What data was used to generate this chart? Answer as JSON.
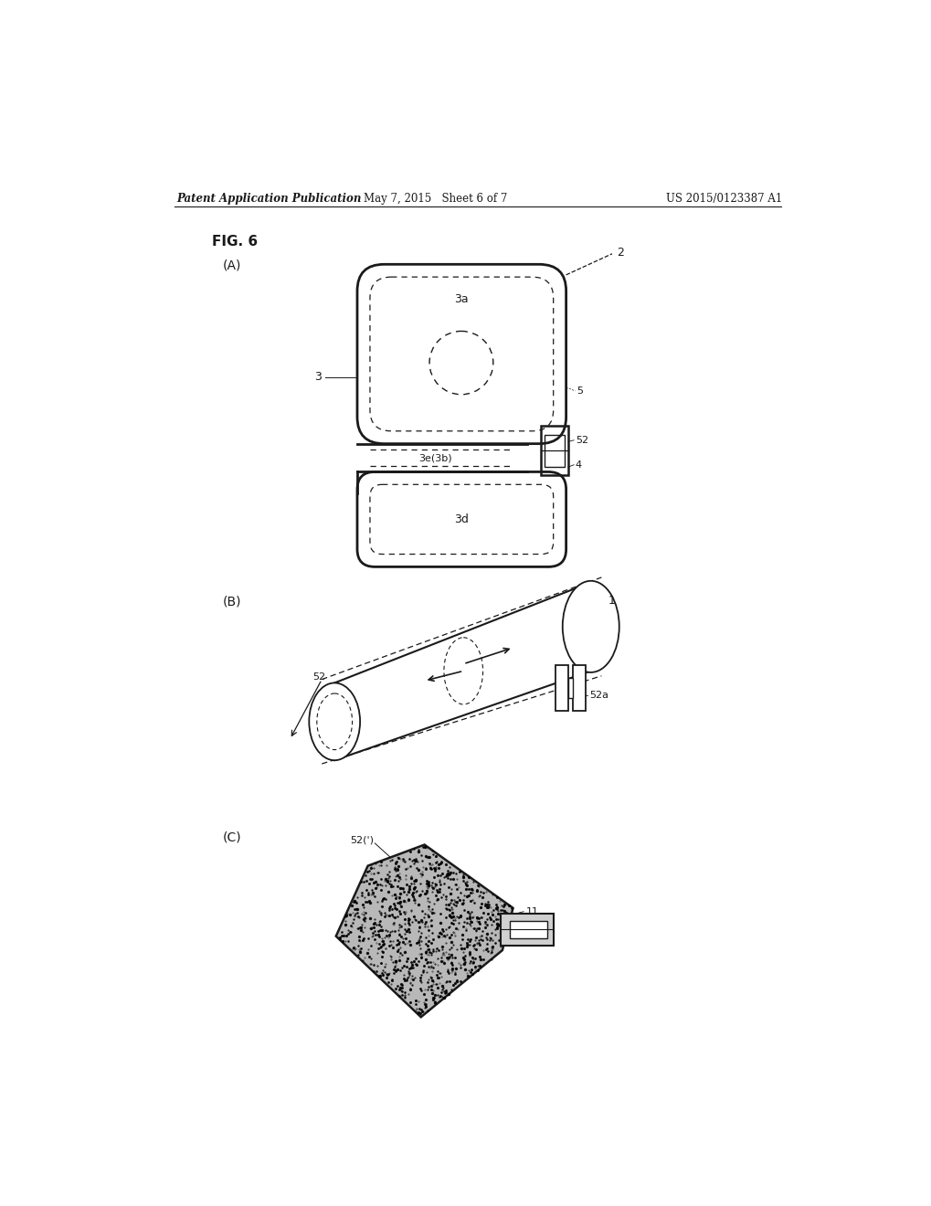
{
  "header_left": "Patent Application Publication",
  "header_mid": "May 7, 2015   Sheet 6 of 7",
  "header_right": "US 2015/0123387 A1",
  "fig_label": "FIG. 6",
  "sub_a_label": "(A)",
  "sub_b_label": "(B)",
  "sub_c_label": "(C)",
  "bg_color": "#ffffff",
  "line_color": "#1a1a1a",
  "gray_fill": "#e0e0e0",
  "dark_fill": "#555555"
}
